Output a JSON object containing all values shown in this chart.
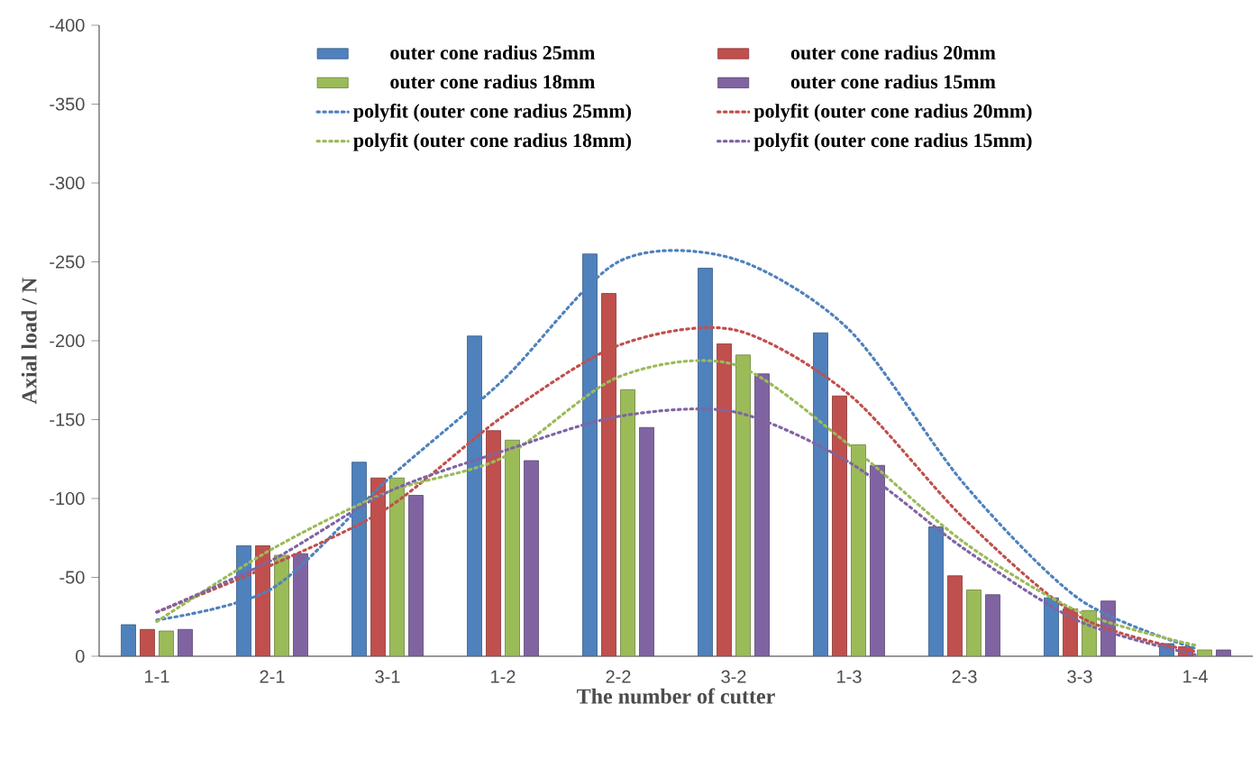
{
  "chart_data": {
    "type": "bar",
    "xlabel": "The number of cutter",
    "ylabel": "Axial load / N",
    "categories": [
      "1-1",
      "2-1",
      "3-1",
      "1-2",
      "2-2",
      "3-2",
      "1-3",
      "2-3",
      "3-3",
      "1-4"
    ],
    "series": [
      {
        "name": "outer cone radius 25mm",
        "color": "#4f81bd",
        "values": [
          -20,
          -70,
          -123,
          -203,
          -255,
          -246,
          -205,
          -82,
          -37,
          -8
        ]
      },
      {
        "name": "outer cone radius 20mm",
        "color": "#c0504d",
        "values": [
          -17,
          -70,
          -113,
          -143,
          -230,
          -198,
          -165,
          -51,
          -30,
          -6
        ]
      },
      {
        "name": "outer cone radius 18mm",
        "color": "#9bbb59",
        "values": [
          -16,
          -64,
          -113,
          -137,
          -169,
          -191,
          -134,
          -42,
          -29,
          -4
        ]
      },
      {
        "name": "outer cone radius 15mm",
        "color": "#8064a2",
        "values": [
          -17,
          -65,
          -102,
          -124,
          -145,
          -179,
          -121,
          -39,
          -35,
          -4
        ]
      },
      {
        "name": "polyfit (outer cone radius 25mm)",
        "color": "#4f81bd",
        "type": "line",
        "line_style": "dotted",
        "marker": "none",
        "values": [
          -23,
          -43,
          -112,
          -175,
          -250,
          -252,
          -207,
          -109,
          -36,
          -5
        ]
      },
      {
        "name": "polyfit (outer cone radius 20mm)",
        "color": "#c0504d",
        "type": "line",
        "line_style": "dotted",
        "marker": "none",
        "values": [
          -28,
          -58,
          -94,
          -152,
          -197,
          -207,
          -166,
          -87,
          -25,
          -3
        ]
      },
      {
        "name": "polyfit (outer cone radius 18mm)",
        "color": "#9bbb59",
        "type": "line",
        "line_style": "dotted",
        "marker": "none",
        "values": [
          -22,
          -68,
          -104,
          -126,
          -177,
          -185,
          -134,
          -72,
          -28,
          -7
        ]
      },
      {
        "name": "polyfit (outer cone radius 15mm)",
        "color": "#8064a2",
        "type": "line",
        "line_style": "dotted",
        "marker": "none",
        "values": [
          -28,
          -61,
          -104,
          -130,
          -152,
          -155,
          -123,
          -68,
          -22,
          -1
        ]
      }
    ],
    "ylim": [
      0,
      -400
    ],
    "yticks": [
      0,
      -50,
      -100,
      -150,
      -200,
      -250,
      -300,
      -350,
      -400
    ],
    "grid": false,
    "legend": "top"
  }
}
